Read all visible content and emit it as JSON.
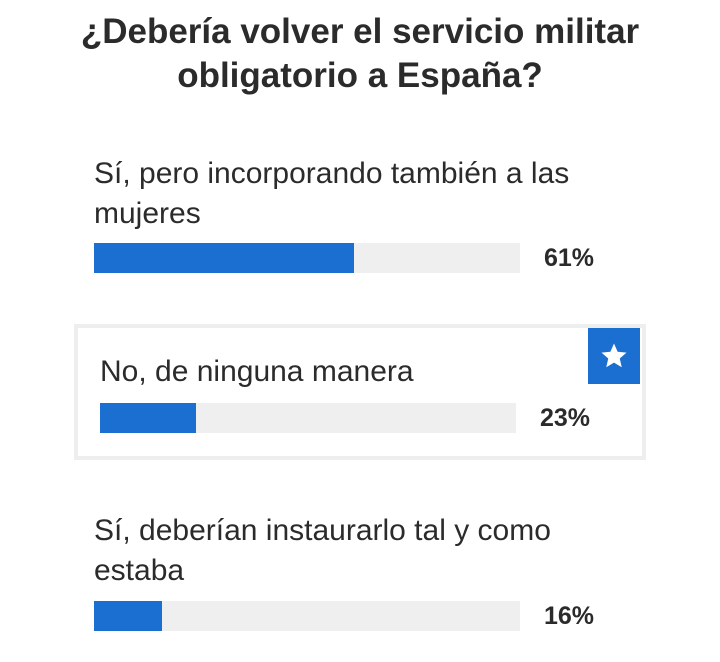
{
  "poll": {
    "title": "¿Debería volver el servicio militar obligatorio a España?",
    "accent_color": "#1a6fd0",
    "options": [
      {
        "label": "Sí, pero incorporando también a las mujeres",
        "percent_label": "61%",
        "value": 61,
        "highlighted": false
      },
      {
        "label": "No, de ninguna manera",
        "percent_label": "23%",
        "value": 23,
        "highlighted": true,
        "badge_icon": "star-icon"
      },
      {
        "label": "Sí, deberían instaurarlo tal y como estaba",
        "percent_label": "16%",
        "value": 16,
        "highlighted": false
      }
    ]
  }
}
